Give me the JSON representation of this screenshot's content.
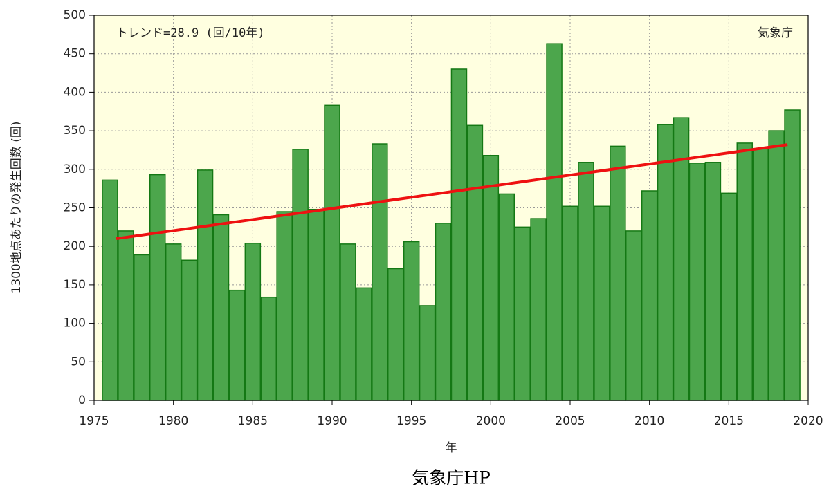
{
  "chart_data": {
    "type": "bar",
    "xlabel": "年",
    "ylabel": "1300地点あたりの発生回数 (回)",
    "annotations": [
      "トレンド=28.9 (回/10年)",
      "気象庁"
    ],
    "caption": "気象庁HP",
    "x": [
      1976,
      1977,
      1978,
      1979,
      1980,
      1981,
      1982,
      1983,
      1984,
      1985,
      1986,
      1987,
      1988,
      1989,
      1990,
      1991,
      1992,
      1993,
      1994,
      1995,
      1996,
      1997,
      1998,
      1999,
      2000,
      2001,
      2002,
      2003,
      2004,
      2005,
      2006,
      2007,
      2008,
      2009,
      2010,
      2011,
      2012,
      2013,
      2014,
      2015,
      2016,
      2017,
      2018,
      2019
    ],
    "values": [
      286,
      220,
      189,
      293,
      203,
      182,
      299,
      241,
      143,
      204,
      134,
      245,
      326,
      248,
      383,
      203,
      146,
      333,
      171,
      206,
      123,
      230,
      430,
      357,
      318,
      268,
      225,
      236,
      463,
      252,
      309,
      252,
      330,
      220,
      272,
      358,
      367,
      308,
      309,
      269,
      334,
      327,
      350,
      377
    ],
    "color": "#4ca64c",
    "edge_color": "#147814",
    "trend": {
      "x": [
        1976.4,
        2018.7
      ],
      "values": [
        210,
        332
      ],
      "color": "#ee1111"
    },
    "xlim": [
      1975,
      2020
    ],
    "xticks": [
      1975,
      1980,
      1985,
      1990,
      1995,
      2000,
      2005,
      2010,
      2015,
      2020
    ],
    "ylim": [
      0,
      500
    ],
    "yticks": [
      0,
      50,
      100,
      150,
      200,
      250,
      300,
      350,
      400,
      450,
      500
    ],
    "grid": true,
    "background": "#ffffe0"
  }
}
